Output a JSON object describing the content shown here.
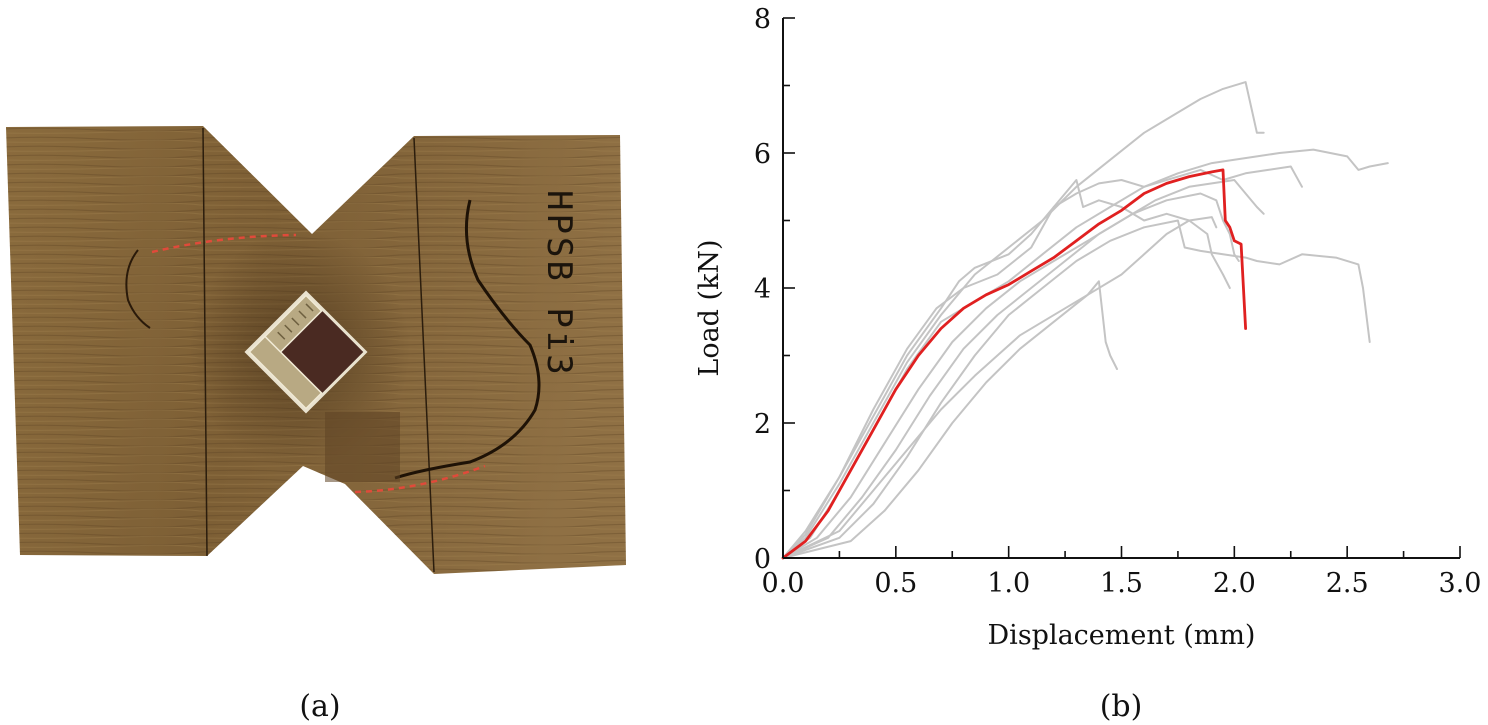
{
  "panels": {
    "a": {
      "caption": "(a)",
      "specimen_label": "HPSB Pi3"
    },
    "b": {
      "caption": "(b)"
    }
  },
  "colors": {
    "wood_light": "#8a6a3c",
    "wood_dark": "#5e4424",
    "crack_marker": "#e04a3a",
    "grey_series": "#c4c4c4",
    "highlight_series": "#e02020",
    "axis": "#111111"
  },
  "chart_data": {
    "type": "line",
    "title": "",
    "xlabel": "Displacement (mm)",
    "ylabel": "Load (kN)",
    "xlim": [
      0,
      3.0
    ],
    "ylim": [
      0,
      8
    ],
    "x_ticks": [
      0.0,
      0.5,
      1.0,
      1.5,
      2.0,
      2.5,
      3.0
    ],
    "x_tick_labels": [
      "0.0",
      "0.5",
      "1.0",
      "1.5",
      "2.0",
      "2.5",
      "3.0"
    ],
    "y_ticks": [
      0,
      2,
      4,
      6,
      8
    ],
    "y_tick_labels": [
      "0",
      "2",
      "4",
      "6",
      "8"
    ],
    "x_minor_step": 0.25,
    "y_minor_step": 1,
    "grid": false,
    "legend": "none",
    "series": [
      {
        "color": "#c4c4c4",
        "points": [
          [
            0,
            0
          ],
          [
            0.1,
            0.3
          ],
          [
            0.25,
            1.1
          ],
          [
            0.4,
            2.0
          ],
          [
            0.55,
            2.9
          ],
          [
            0.7,
            3.6
          ],
          [
            0.85,
            4.2
          ],
          [
            1.0,
            4.6
          ],
          [
            1.15,
            5.0
          ],
          [
            1.3,
            5.5
          ],
          [
            1.45,
            5.9
          ],
          [
            1.6,
            6.3
          ],
          [
            1.75,
            6.6
          ],
          [
            1.85,
            6.8
          ],
          [
            1.95,
            6.95
          ],
          [
            2.05,
            7.05
          ],
          [
            2.08,
            6.6
          ],
          [
            2.1,
            6.3
          ],
          [
            2.13,
            6.3
          ]
        ]
      },
      {
        "color": "#c4c4c4",
        "points": [
          [
            0,
            0
          ],
          [
            0.1,
            0.35
          ],
          [
            0.25,
            1.2
          ],
          [
            0.4,
            2.1
          ],
          [
            0.55,
            3.0
          ],
          [
            0.7,
            3.7
          ],
          [
            0.78,
            4.1
          ],
          [
            0.85,
            4.3
          ],
          [
            1.0,
            4.5
          ],
          [
            1.1,
            4.8
          ],
          [
            1.2,
            5.2
          ],
          [
            1.3,
            5.6
          ],
          [
            1.33,
            5.2
          ],
          [
            1.4,
            5.3
          ],
          [
            1.5,
            5.2
          ],
          [
            1.6,
            5.0
          ],
          [
            1.7,
            5.1
          ],
          [
            1.8,
            5.0
          ],
          [
            1.88,
            4.8
          ],
          [
            1.9,
            4.5
          ],
          [
            1.95,
            4.2
          ],
          [
            1.98,
            4.0
          ]
        ]
      },
      {
        "color": "#c4c4c4",
        "points": [
          [
            0,
            0
          ],
          [
            0.12,
            0.3
          ],
          [
            0.25,
            1.0
          ],
          [
            0.4,
            1.9
          ],
          [
            0.55,
            2.8
          ],
          [
            0.7,
            3.5
          ],
          [
            0.85,
            3.8
          ],
          [
            1.0,
            4.1
          ],
          [
            1.15,
            4.5
          ],
          [
            1.3,
            4.9
          ],
          [
            1.45,
            5.2
          ],
          [
            1.6,
            5.5
          ],
          [
            1.75,
            5.7
          ],
          [
            1.9,
            5.85
          ],
          [
            2.0,
            5.9
          ],
          [
            2.1,
            5.95
          ],
          [
            2.2,
            6.0
          ],
          [
            2.35,
            6.05
          ],
          [
            2.5,
            5.95
          ],
          [
            2.55,
            5.75
          ],
          [
            2.6,
            5.8
          ],
          [
            2.68,
            5.85
          ]
        ]
      },
      {
        "color": "#c4c4c4",
        "points": [
          [
            0,
            0
          ],
          [
            0.15,
            0.3
          ],
          [
            0.3,
            0.9
          ],
          [
            0.45,
            1.7
          ],
          [
            0.6,
            2.5
          ],
          [
            0.75,
            3.2
          ],
          [
            0.9,
            3.7
          ],
          [
            1.05,
            4.1
          ],
          [
            1.2,
            4.4
          ],
          [
            1.35,
            4.7
          ],
          [
            1.5,
            5.0
          ],
          [
            1.65,
            5.3
          ],
          [
            1.8,
            5.5
          ],
          [
            1.9,
            5.55
          ],
          [
            2.0,
            5.6
          ],
          [
            2.05,
            5.4
          ],
          [
            2.1,
            5.2
          ],
          [
            2.13,
            5.1
          ]
        ]
      },
      {
        "color": "#c4c4c4",
        "points": [
          [
            0,
            0
          ],
          [
            0.2,
            0.3
          ],
          [
            0.35,
            0.9
          ],
          [
            0.5,
            1.6
          ],
          [
            0.65,
            2.4
          ],
          [
            0.8,
            3.1
          ],
          [
            0.95,
            3.6
          ],
          [
            1.1,
            4.0
          ],
          [
            1.25,
            4.4
          ],
          [
            1.4,
            4.8
          ],
          [
            1.55,
            5.1
          ],
          [
            1.7,
            5.3
          ],
          [
            1.85,
            5.4
          ],
          [
            1.92,
            5.3
          ],
          [
            1.95,
            5.0
          ],
          [
            1.98,
            4.8
          ],
          [
            2.0,
            4.5
          ],
          [
            2.02,
            4.4
          ]
        ]
      },
      {
        "color": "#c4c4c4",
        "points": [
          [
            0,
            0
          ],
          [
            0.25,
            0.3
          ],
          [
            0.4,
            0.8
          ],
          [
            0.55,
            1.5
          ],
          [
            0.7,
            2.3
          ],
          [
            0.85,
            3.0
          ],
          [
            1.0,
            3.6
          ],
          [
            1.15,
            4.0
          ],
          [
            1.3,
            4.4
          ],
          [
            1.45,
            4.7
          ],
          [
            1.6,
            4.9
          ],
          [
            1.75,
            5.0
          ],
          [
            1.78,
            4.6
          ],
          [
            1.85,
            4.55
          ],
          [
            1.95,
            4.5
          ],
          [
            2.05,
            4.45
          ],
          [
            2.1,
            4.4
          ],
          [
            2.2,
            4.35
          ],
          [
            2.3,
            4.5
          ],
          [
            2.45,
            4.45
          ],
          [
            2.55,
            4.35
          ],
          [
            2.57,
            4.0
          ],
          [
            2.6,
            3.2
          ]
        ]
      },
      {
        "color": "#c4c4c4",
        "points": [
          [
            0,
            0
          ],
          [
            0.3,
            0.25
          ],
          [
            0.45,
            0.7
          ],
          [
            0.6,
            1.3
          ],
          [
            0.75,
            2.0
          ],
          [
            0.9,
            2.6
          ],
          [
            1.05,
            3.1
          ],
          [
            1.2,
            3.5
          ],
          [
            1.35,
            3.9
          ],
          [
            1.5,
            4.2
          ],
          [
            1.6,
            4.5
          ],
          [
            1.7,
            4.8
          ],
          [
            1.8,
            5.0
          ],
          [
            1.9,
            5.05
          ],
          [
            1.92,
            4.9
          ]
        ]
      },
      {
        "color": "#c4c4c4",
        "points": [
          [
            0,
            0
          ],
          [
            0.25,
            0.4
          ],
          [
            0.4,
            1.0
          ],
          [
            0.55,
            1.6
          ],
          [
            0.7,
            2.2
          ],
          [
            0.85,
            2.7
          ],
          [
            0.95,
            3.0
          ],
          [
            1.05,
            3.3
          ],
          [
            1.15,
            3.5
          ],
          [
            1.25,
            3.7
          ],
          [
            1.35,
            3.9
          ],
          [
            1.4,
            4.1
          ],
          [
            1.43,
            3.2
          ],
          [
            1.45,
            3.0
          ],
          [
            1.48,
            2.8
          ]
        ]
      },
      {
        "color": "#c4c4c4",
        "points": [
          [
            0,
            0
          ],
          [
            0.1,
            0.4
          ],
          [
            0.25,
            1.2
          ],
          [
            0.4,
            2.2
          ],
          [
            0.55,
            3.1
          ],
          [
            0.68,
            3.7
          ],
          [
            0.8,
            4.0
          ],
          [
            0.95,
            4.2
          ],
          [
            1.1,
            4.6
          ],
          [
            1.2,
            5.2
          ],
          [
            1.25,
            5.3
          ],
          [
            1.3,
            5.4
          ],
          [
            1.4,
            5.55
          ],
          [
            1.5,
            5.6
          ],
          [
            1.6,
            5.5
          ],
          [
            1.7,
            5.6
          ],
          [
            1.8,
            5.7
          ],
          [
            1.85,
            5.75
          ],
          [
            1.95,
            5.6
          ],
          [
            2.05,
            5.7
          ],
          [
            2.15,
            5.75
          ],
          [
            2.25,
            5.8
          ],
          [
            2.3,
            5.5
          ]
        ]
      },
      {
        "color": "#e02020",
        "points": [
          [
            0,
            0
          ],
          [
            0.1,
            0.25
          ],
          [
            0.2,
            0.7
          ],
          [
            0.3,
            1.3
          ],
          [
            0.4,
            1.9
          ],
          [
            0.5,
            2.5
          ],
          [
            0.6,
            3.0
          ],
          [
            0.7,
            3.4
          ],
          [
            0.8,
            3.7
          ],
          [
            0.9,
            3.9
          ],
          [
            1.0,
            4.05
          ],
          [
            1.1,
            4.25
          ],
          [
            1.2,
            4.45
          ],
          [
            1.3,
            4.7
          ],
          [
            1.4,
            4.95
          ],
          [
            1.5,
            5.15
          ],
          [
            1.6,
            5.4
          ],
          [
            1.7,
            5.55
          ],
          [
            1.8,
            5.65
          ],
          [
            1.9,
            5.72
          ],
          [
            1.95,
            5.75
          ],
          [
            1.96,
            5.0
          ],
          [
            1.98,
            4.9
          ],
          [
            2.0,
            4.7
          ],
          [
            2.03,
            4.65
          ],
          [
            2.05,
            3.4
          ]
        ]
      }
    ]
  }
}
